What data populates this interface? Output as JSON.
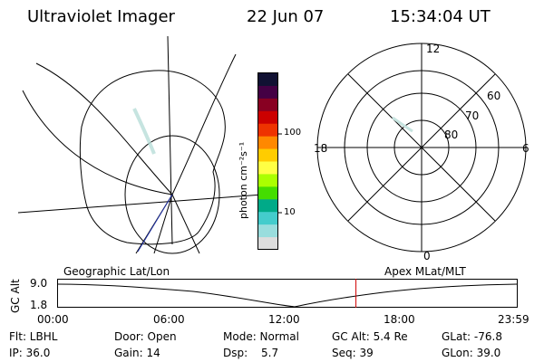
{
  "header": {
    "title": "Ultraviolet Imager",
    "date": "22 Jun 07",
    "time": "15:34:04 UT"
  },
  "colorbar": {
    "unit": "photon cm⁻²s⁻¹",
    "ticks": [
      "100",
      "10"
    ],
    "colors": [
      "#111133",
      "#440044",
      "#880022",
      "#cc0000",
      "#ee3300",
      "#ff8800",
      "#ffcc00",
      "#ffff44",
      "#aaff00",
      "#44dd00",
      "#00aa88",
      "#44cccc",
      "#99dddd",
      "#dddddd"
    ]
  },
  "polar": {
    "mlt_labels": {
      "top": "12",
      "right": "6",
      "bottom": "0",
      "left": "18"
    },
    "lat_labels": [
      "60",
      "70",
      "80"
    ]
  },
  "timeline": {
    "left_title": "Geographic Lat/Lon",
    "right_title": "Apex MLat/MLT",
    "ylabel": "GC Alt",
    "y_ticks": [
      "9.0",
      "1.8"
    ],
    "x_ticks": [
      "00:00",
      "06:00",
      "12:00",
      "18:00",
      "23:59"
    ],
    "current_time_marker_hours": 15.57
  },
  "footer": {
    "filter": "Flt: LBHL",
    "ip": "IP: 36.0",
    "door": "Door: Open",
    "gain": "Gain: 14",
    "mode": "Mode: Normal",
    "dsp_label": "Dsp:",
    "dsp_value": "5.7",
    "gc_alt": "GC Alt: 5.4 Re",
    "seq": "Seq: 39",
    "glat": "GLat: -76.8",
    "glon": "GLon: 39.0"
  }
}
